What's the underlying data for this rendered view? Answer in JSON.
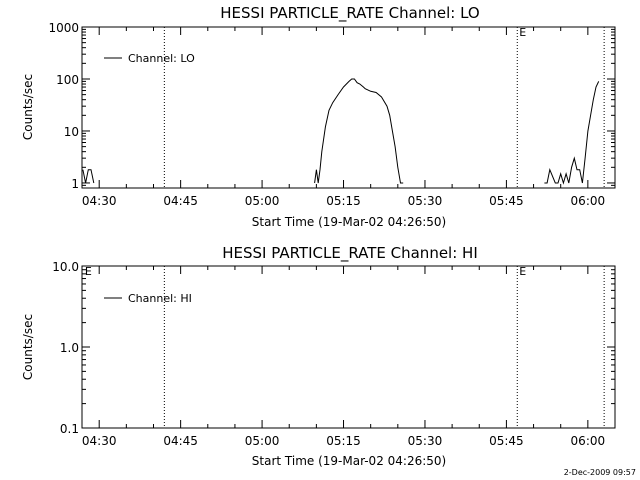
{
  "timestamp": "2-Dec-2009 09:57",
  "chart_data": [
    {
      "type": "line",
      "title": "HESSI PARTICLE_RATE Channel: LO",
      "xlabel": "Start Time (19-Mar-02 04:26:50)",
      "ylabel": "Counts/sec",
      "yscale": "log",
      "ylim": [
        0.8,
        1000
      ],
      "xlim": [
        "04:26:50",
        "06:05:00"
      ],
      "x_ticks": [
        "04:30",
        "04:45",
        "05:00",
        "05:15",
        "05:30",
        "05:45",
        "06:00"
      ],
      "y_ticks": [
        "1",
        "10",
        "100",
        "1000"
      ],
      "legend": "Channel: LO",
      "legend_position": "top-left",
      "vertical_lines": [
        "04:42",
        "05:47",
        "06:03"
      ],
      "markers": [
        {
          "label": "E",
          "x": "05:47"
        }
      ],
      "series": [
        {
          "name": "Channel: LO",
          "x": [
            "04:27",
            "04:27:30",
            "04:28",
            "04:28:30",
            "04:29",
            "05:09:40",
            "05:10",
            "05:10:20",
            "05:10:40",
            "05:11",
            "05:11:40",
            "05:12:20",
            "05:13",
            "05:14",
            "05:15",
            "05:16",
            "05:16:30",
            "05:17",
            "05:17:30",
            "05:18",
            "05:18:40",
            "05:19",
            "05:20",
            "05:21",
            "05:22",
            "05:23",
            "05:23:30",
            "05:24",
            "05:24:30",
            "05:25",
            "05:25:30",
            "05:26",
            "05:52",
            "05:52:30",
            "05:53",
            "05:54",
            "05:54:30",
            "05:55",
            "05:55:30",
            "05:56",
            "05:56:30",
            "05:57",
            "05:57:30",
            "05:58",
            "05:58:30",
            "05:59",
            "05:59:30",
            "06:00",
            "06:00:30",
            "06:01",
            "06:01:30",
            "06:02"
          ],
          "y": [
            1.8,
            1,
            1.8,
            1.8,
            1,
            1,
            1.8,
            1,
            1.8,
            4,
            12,
            25,
            35,
            50,
            70,
            90,
            100,
            100,
            85,
            80,
            70,
            65,
            58,
            55,
            45,
            30,
            20,
            10,
            5,
            2,
            1,
            1,
            1,
            1,
            1.8,
            1,
            1,
            1.5,
            1,
            1.5,
            1,
            2,
            3,
            1.8,
            1.8,
            1,
            3,
            10,
            20,
            40,
            70,
            90
          ]
        }
      ]
    },
    {
      "type": "line",
      "title": "HESSI PARTICLE_RATE Channel: HI",
      "xlabel": "Start Time (19-Mar-02 04:26:50)",
      "ylabel": "Counts/sec",
      "yscale": "log",
      "ylim": [
        0.1,
        10
      ],
      "xlim": [
        "04:26:50",
        "06:05:00"
      ],
      "x_ticks": [
        "04:30",
        "04:45",
        "05:00",
        "05:15",
        "05:30",
        "05:45",
        "06:00"
      ],
      "y_ticks": [
        "0.1",
        "1.0",
        "10.0"
      ],
      "legend": "Channel: HI",
      "legend_position": "top-left",
      "vertical_lines": [
        "04:42",
        "05:47",
        "06:03"
      ],
      "markers": [
        {
          "label": "E",
          "x": "04:27"
        },
        {
          "label": "E",
          "x": "05:47"
        }
      ],
      "series": [
        {
          "name": "Channel: HI",
          "x": [],
          "y": []
        }
      ]
    }
  ]
}
